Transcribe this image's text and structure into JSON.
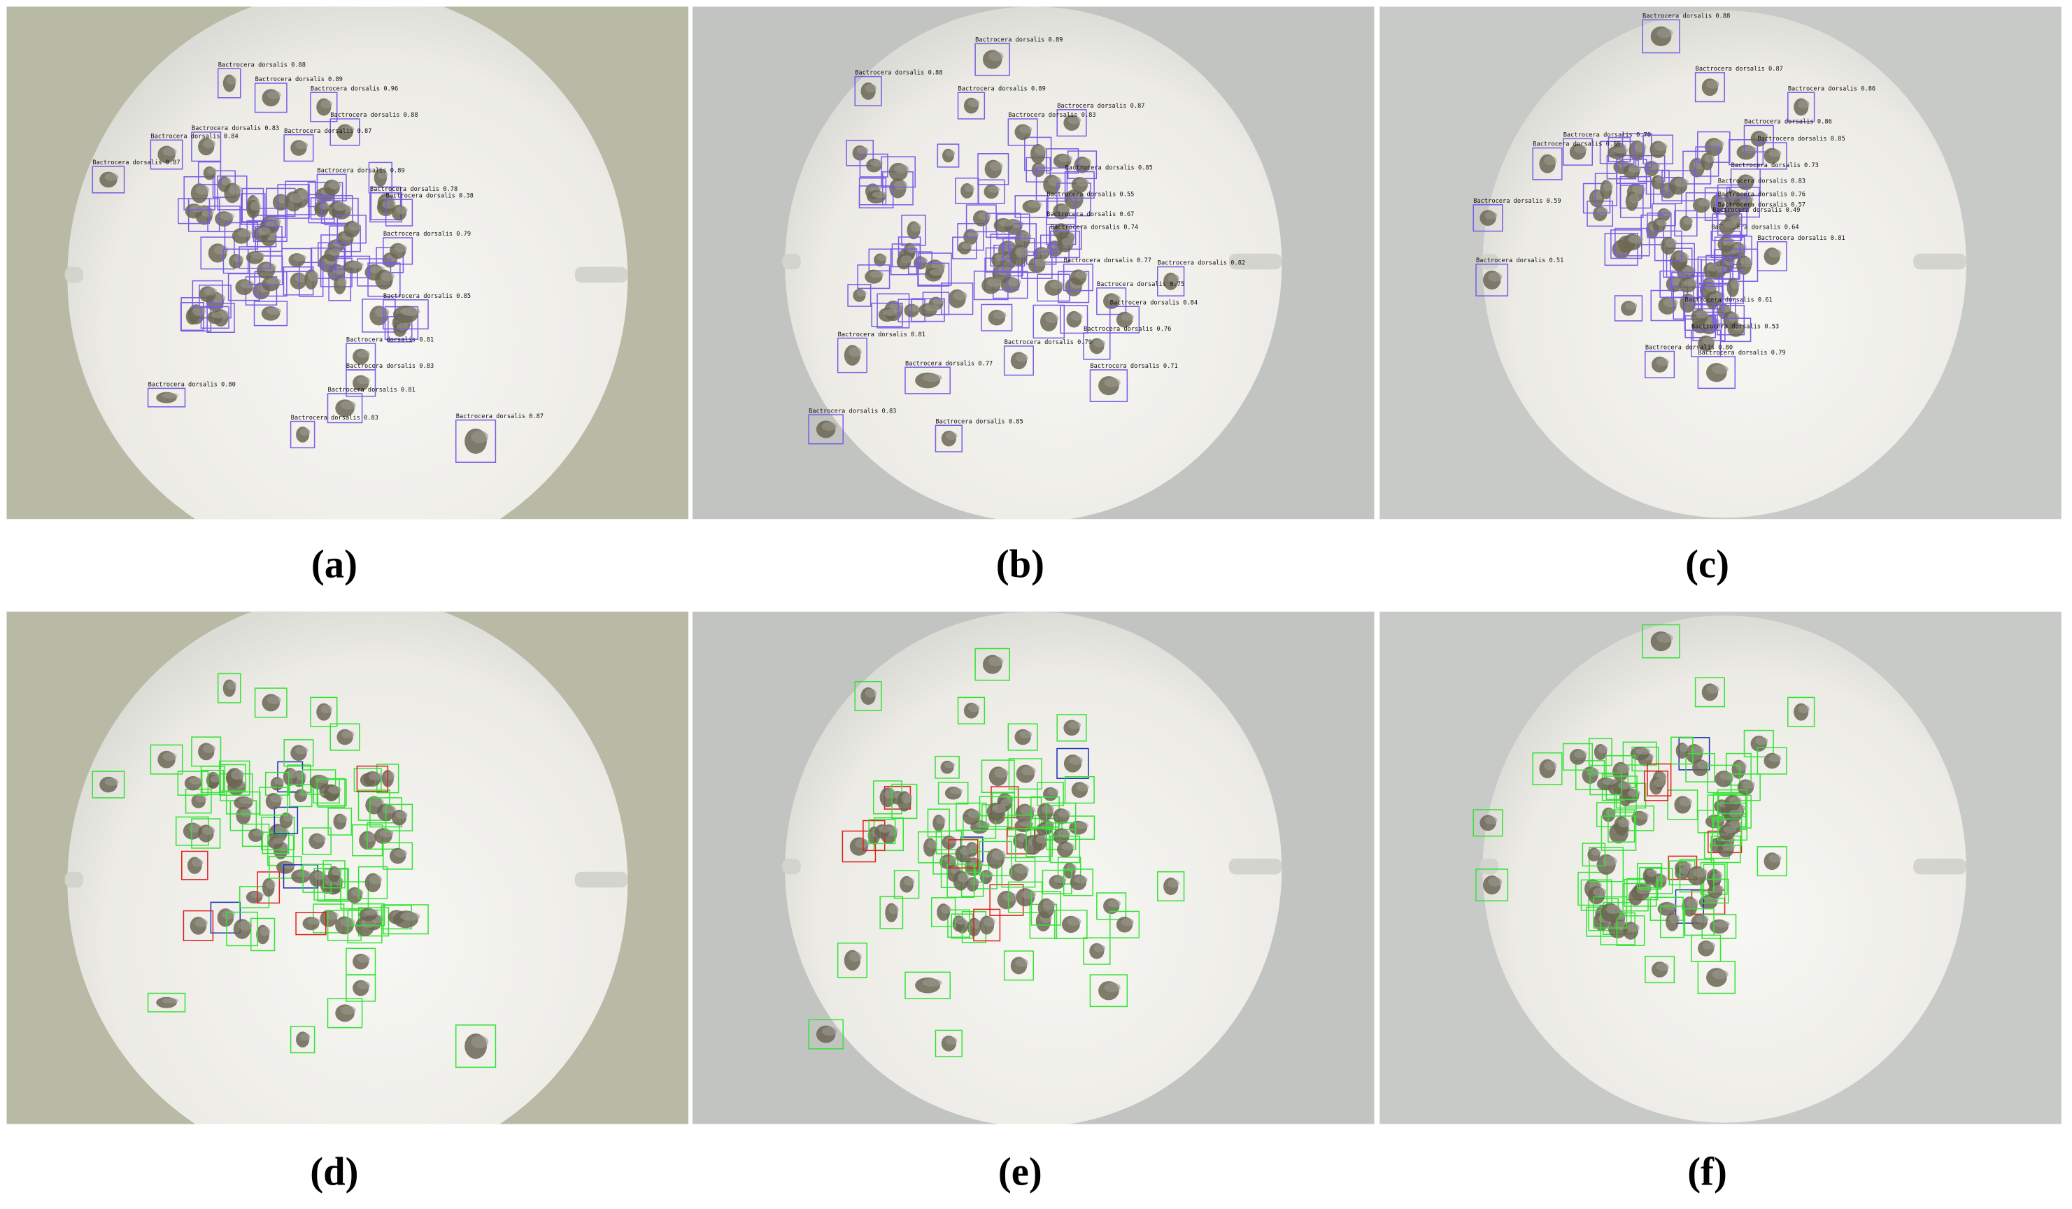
{
  "panels": [
    {
      "caption": "(a)",
      "labels": [
        "Bactrocera dorsalis 0.88",
        "Bactrocera dorsalis 0.89",
        "Bactrocera dorsalis 0.96",
        "Bactrocera dorsalis 0.88",
        "Bactrocera dorsalis 0.83",
        "Bactrocera dorsalis 0.84",
        "Bactrocera dorsalis 0.87",
        "Bactrocera dorsalis 0.87",
        "Bactrocera dorsalis 0.89",
        "Bactrocera dorsalis 0.78",
        "Bactrocera dorsalis 0.38",
        "Bactrocera dorsalis 0.79",
        "Bactrocera dorsalis 0.85",
        "Bactrocera dorsalis 0.81",
        "Bactrocera dorsalis 0.83",
        "Bactrocera dorsalis 0.81",
        "Bactrocera dorsalis 0.80",
        "Bactrocera dorsalis 0.83",
        "Bactrocera dorsalis 0.87"
      ]
    },
    {
      "caption": "(b)",
      "labels": [
        "Bactrocera dorsalis 0.89",
        "Bactrocera dorsalis 0.88",
        "Bactrocera dorsalis 0.89",
        "Bactrocera dorsalis 0.87",
        "Bactrocera dorsalis 0.83",
        "Bactrocera dorsalis 0.85",
        "Bactrocera dorsalis 0.55",
        "Bactrocera dorsalis 0.67",
        "Bactrocera dorsalis 0.74",
        "Bactrocera dorsalis 0.82",
        "Bactrocera dorsalis 0.77",
        "Bactrocera dorsalis 0.75",
        "Bactrocera dorsalis 0.84",
        "Bactrocera dorsalis 0.71",
        "Bactrocera dorsalis 0.76",
        "Bactrocera dorsalis 0.81",
        "Bactrocera dorsalis 0.79",
        "Bactrocera dorsalis 0.83",
        "Bactrocera dorsalis 0.85",
        "Bactrocera dorsalis 0.77"
      ]
    },
    {
      "caption": "(c)",
      "labels": [
        "Bactrocera dorsalis 0.88",
        "Bactrocera dorsalis 0.87",
        "Bactrocera dorsalis 0.86",
        "Bactrocera dorsalis 0.86",
        "Bactrocera dorsalis 0.85",
        "Bactrocera dorsalis 0.73",
        "Bactrocera dorsalis 0.83",
        "Bactrocera dorsalis 0.76",
        "Bactrocera dorsalis 0.57",
        "Bactrocera dorsalis 0.64",
        "Bactrocera dorsalis 0.81",
        "Bactrocera dorsalis 0.49",
        "Bactrocera dorsalis 0.61",
        "Bactrocera dorsalis 0.53",
        "Bactrocera dorsalis 0.79",
        "Bactrocera dorsalis 0.80",
        "Bactrocera dorsalis 0.59",
        "Bactrocera dorsalis 0.51",
        "Bactrocera dorsalis 0.70",
        "Bactrocera dorsalis 0.85"
      ]
    },
    {
      "caption": "(d)"
    },
    {
      "caption": "(e)"
    },
    {
      "caption": "(f)"
    }
  ]
}
